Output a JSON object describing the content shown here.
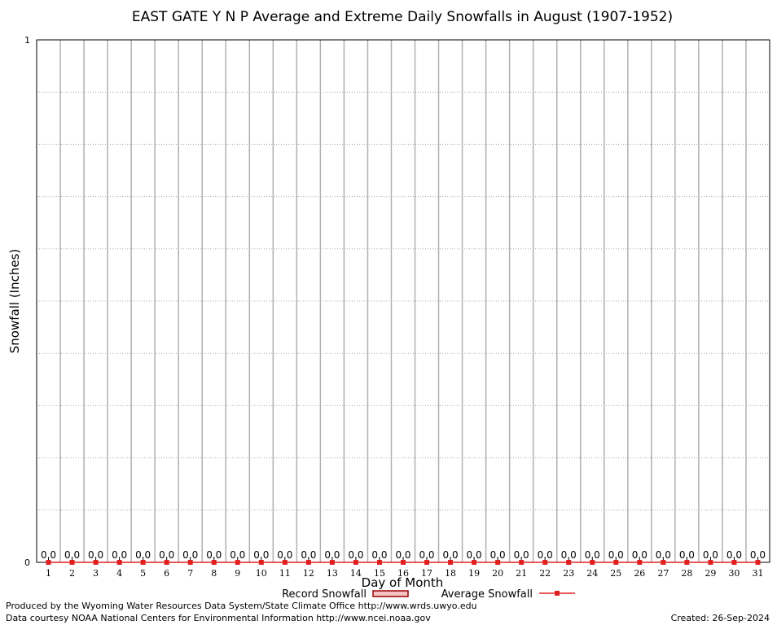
{
  "chart_data": {
    "type": "bar",
    "title": "EAST GATE Y N P Average and Extreme Daily Snowfalls in August (1907-1952)",
    "xlabel": "Day of Month",
    "ylabel": "Snowfall (Inches)",
    "ylim": [
      0,
      1
    ],
    "y_ticks": [
      "0",
      "1"
    ],
    "y_grid_steps": 10,
    "grid": true,
    "categories": [
      "1",
      "2",
      "3",
      "4",
      "5",
      "6",
      "7",
      "8",
      "9",
      "10",
      "11",
      "12",
      "13",
      "14",
      "15",
      "16",
      "17",
      "18",
      "19",
      "20",
      "21",
      "22",
      "23",
      "24",
      "25",
      "26",
      "27",
      "28",
      "29",
      "30",
      "31"
    ],
    "series": [
      {
        "name": "Record Snowfall",
        "style": "bar",
        "color": "#cc0000",
        "values": [
          0,
          0,
          0,
          0,
          0,
          0,
          0,
          0,
          0,
          0,
          0,
          0,
          0,
          0,
          0,
          0,
          0,
          0,
          0,
          0,
          0,
          0,
          0,
          0,
          0,
          0,
          0,
          0,
          0,
          0,
          0
        ]
      },
      {
        "name": "Average Snowfall",
        "style": "line-points",
        "color": "#e02020",
        "values": [
          0,
          0,
          0,
          0,
          0,
          0,
          0,
          0,
          0,
          0,
          0,
          0,
          0,
          0,
          0,
          0,
          0,
          0,
          0,
          0,
          0,
          0,
          0,
          0,
          0,
          0,
          0,
          0,
          0,
          0,
          0
        ]
      }
    ],
    "data_labels": [
      "0.0",
      "0.0",
      "0.0",
      "0.0",
      "0.0",
      "0.0",
      "0.0",
      "0.0",
      "0.0",
      "0.0",
      "0.0",
      "0.0",
      "0.0",
      "0.0",
      "0.0",
      "0.0",
      "0.0",
      "0.0",
      "0.0",
      "0.0",
      "0.0",
      "0.0",
      "0.0",
      "0.0",
      "0.0",
      "0.0",
      "0.0",
      "0.0",
      "0.0",
      "0.0",
      "0.0"
    ],
    "legend_placement": "bottom-center"
  },
  "footer": {
    "credit_line1": "Produced by the Wyoming Water Resources Data System/State Climate Office http://www.wrds.uwyo.edu",
    "credit_line2": "Data courtesy NOAA National Centers for Environmental Information http://www.ncei.noaa.gov",
    "created": "Created:  26-Sep-2024"
  }
}
